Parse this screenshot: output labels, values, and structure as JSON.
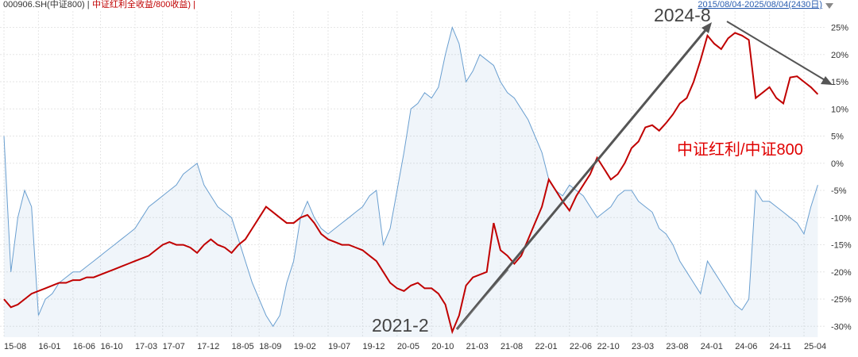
{
  "chart_data": {
    "type": "line",
    "header_left": "000906.SH(中证800) |",
    "header_right": "中证红利全收益/800收益) |",
    "date_range": "2015/08/04-2025/08/04(2430日)",
    "annotations": [
      "2024-8",
      "2021-2",
      "中证红利/中证800"
    ],
    "x": [
      "15-08",
      "15-09",
      "15-10",
      "15-11",
      "15-12",
      "16-01",
      "16-02",
      "16-03",
      "16-04",
      "16-05",
      "16-06",
      "16-07",
      "16-08",
      "16-09",
      "16-10",
      "16-11",
      "16-12",
      "17-01",
      "17-02",
      "17-03",
      "17-04",
      "17-05",
      "17-06",
      "17-07",
      "17-08",
      "17-09",
      "17-10",
      "17-11",
      "17-12",
      "18-01",
      "18-02",
      "18-03",
      "18-04",
      "18-05",
      "18-06",
      "18-07",
      "18-08",
      "18-09",
      "18-10",
      "18-11",
      "18-12",
      "19-01",
      "19-02",
      "19-03",
      "19-04",
      "19-05",
      "19-06",
      "19-07",
      "19-08",
      "19-09",
      "19-10",
      "19-11",
      "19-12",
      "20-01",
      "20-02",
      "20-03",
      "20-04",
      "20-05",
      "20-06",
      "20-07",
      "20-08",
      "20-09",
      "20-10",
      "20-11",
      "20-12",
      "21-01",
      "21-02",
      "21-03",
      "21-04",
      "21-05",
      "21-06",
      "21-07",
      "21-08",
      "21-09",
      "21-10",
      "21-11",
      "21-12",
      "22-01",
      "22-02",
      "22-03",
      "22-04",
      "22-05",
      "22-06",
      "22-07",
      "22-08",
      "22-09",
      "22-10",
      "22-11",
      "22-12",
      "23-01",
      "23-02",
      "23-03",
      "23-04",
      "23-05",
      "23-06",
      "23-07",
      "23-08",
      "23-09",
      "23-10",
      "23-11",
      "23-12",
      "24-01",
      "24-02",
      "24-03",
      "24-04",
      "24-05",
      "24-06",
      "24-07",
      "24-08",
      "24-09",
      "24-10",
      "24-11",
      "24-12",
      "25-01",
      "25-02",
      "25-03",
      "25-04",
      "25-05",
      "25-06"
    ],
    "xticks": [
      "15-08",
      "16-01",
      "16-06",
      "16-10",
      "17-03",
      "17-07",
      "17-12",
      "18-05",
      "18-09",
      "19-02",
      "19-07",
      "19-12",
      "20-05",
      "20-10",
      "21-03",
      "21-08",
      "22-01",
      "22-06",
      "22-10",
      "23-03",
      "23-08",
      "24-01",
      "24-06",
      "24-11",
      "25-04"
    ],
    "series": [
      {
        "color": "#6a9fd0",
        "area": true,
        "values": [
          5,
          -20,
          -10,
          -5,
          -8,
          -28,
          -25,
          -24,
          -22,
          -21,
          -20,
          -20,
          -19,
          -18,
          -17,
          -16,
          -15,
          -14,
          -13,
          -12,
          -10,
          -8,
          -7,
          -6,
          -5,
          -4,
          -2,
          -1,
          0,
          -4,
          -6,
          -8,
          -9,
          -10,
          -14,
          -18,
          -22,
          -25,
          -28,
          -30,
          -28,
          -22,
          -18,
          -10,
          -7,
          -10,
          -12,
          -13,
          -12,
          -11,
          -10,
          -9,
          -8,
          -6,
          -5,
          -15,
          -12,
          -5,
          2,
          10,
          11,
          13,
          12,
          14,
          20,
          25,
          22,
          15,
          17,
          20,
          19,
          18,
          15,
          13,
          12,
          10,
          8,
          5,
          2,
          -3,
          -5,
          -6,
          -4,
          -5,
          -6,
          -8,
          -10,
          -9,
          -8,
          -6,
          -5,
          -5,
          -7,
          -8,
          -9,
          -12,
          -13,
          -15,
          -18,
          -20,
          -22,
          -24,
          -18,
          -20,
          -22,
          -24,
          -26,
          -27,
          -25,
          -5,
          -7,
          -7,
          -8,
          -9,
          -10,
          -11,
          -13,
          -8,
          -4
        ]
      },
      {
        "color": "#c00000",
        "area": false,
        "values": [
          -25,
          -26.5,
          -26,
          -25,
          -24,
          -23.5,
          -23,
          -22.5,
          -22,
          -22,
          -21.5,
          -21.5,
          -21,
          -21,
          -20.5,
          -20,
          -19.5,
          -19,
          -18.5,
          -18,
          -17.5,
          -17,
          -16,
          -15,
          -14.5,
          -15,
          -15,
          -15.5,
          -16.5,
          -15,
          -14,
          -15,
          -15.5,
          -16.5,
          -15,
          -14,
          -12,
          -10,
          -8,
          -9,
          -10,
          -11,
          -11,
          -10,
          -9.5,
          -11,
          -13,
          -14,
          -14.5,
          -15,
          -15,
          -15.5,
          -16,
          -17,
          -18,
          -20,
          -22,
          -23,
          -23.5,
          -22.5,
          -22,
          -23,
          -23,
          -24,
          -26,
          -31,
          -28,
          -22.5,
          -21,
          -20.5,
          -20,
          -11,
          -16,
          -17,
          -18.5,
          -17,
          -14,
          -11,
          -8,
          -3,
          -5,
          -7,
          -8.7,
          -6,
          -4,
          -2,
          1,
          -1,
          -3,
          -2,
          0,
          2.8,
          4,
          6.6,
          7,
          6,
          7.4,
          9,
          11,
          12,
          15,
          19,
          23.5,
          22,
          21,
          23,
          24,
          23.5,
          22.7,
          12,
          13,
          14,
          12,
          11,
          15.8,
          16,
          15,
          14,
          12.7
        ]
      }
    ],
    "ylim": [
      -32,
      28
    ],
    "yticks": [
      {
        "value": 25,
        "label": "25%"
      },
      {
        "value": 20,
        "label": "20%"
      },
      {
        "value": 15,
        "label": "15%"
      },
      {
        "value": 10,
        "label": "10%"
      },
      {
        "value": 5,
        "label": "5%"
      },
      {
        "value": 0,
        "label": "0%"
      },
      {
        "value": -5,
        "label": "-5%"
      },
      {
        "value": -10,
        "label": "-10%"
      },
      {
        "value": -15,
        "label": "-15%"
      },
      {
        "value": -20,
        "label": "-20%"
      },
      {
        "value": -25,
        "label": "-25%"
      },
      {
        "value": -30,
        "label": "-30%"
      }
    ],
    "grid": true
  }
}
